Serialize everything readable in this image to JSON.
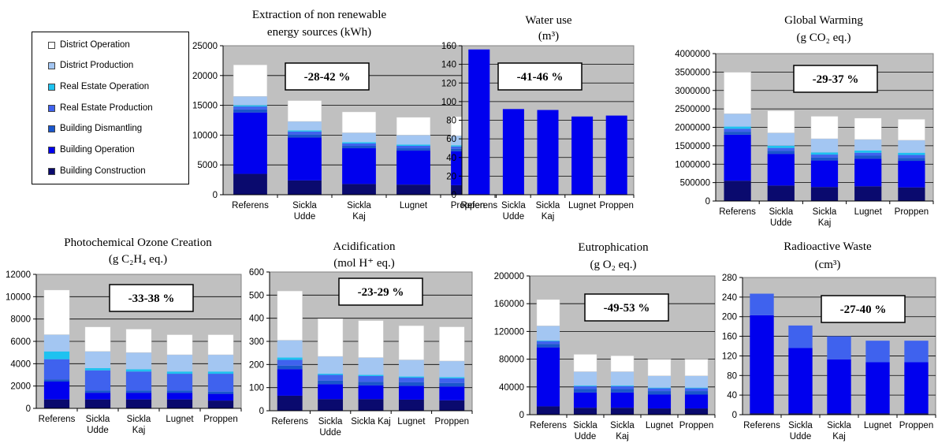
{
  "colors": {
    "building_construction": "#0a0a6e",
    "building_operation": "#0000ee",
    "building_dismantling": "#1a56cc",
    "real_estate_production": "#3f62ee",
    "real_estate_operation": "#1ec2f0",
    "district_production": "#a3c6f2",
    "district_operation": "#ffffff",
    "plot_background": "#c0c0c0"
  },
  "legend": {
    "items": [
      {
        "label": "District Operation",
        "color": "#ffffff"
      },
      {
        "label": "District Production",
        "color": "#a3c6f2"
      },
      {
        "label": "Real Estate Operation",
        "color": "#1ec2f0"
      },
      {
        "label": "Real Estate Production",
        "color": "#3f62ee"
      },
      {
        "label": "Building Dismantling",
        "color": "#1a56cc"
      },
      {
        "label": "Building Operation",
        "color": "#0000ee"
      },
      {
        "label": "Building Construction",
        "color": "#0a0a6e"
      }
    ]
  },
  "chart_data": [
    {
      "id": "energy",
      "type": "bar",
      "stacked": true,
      "title_lines": [
        "Extraction of non renewable",
        "energy sources (kWh)"
      ],
      "categories": [
        [
          "Referens"
        ],
        [
          "Sickla",
          "Udde"
        ],
        [
          "Sickla",
          "Kaj"
        ],
        [
          "Lugnet"
        ],
        [
          "Proppen"
        ]
      ],
      "ylim": [
        0,
        25000
      ],
      "yticks": [
        "0",
        "5000",
        "10000",
        "15000",
        "20000",
        "25000"
      ],
      "annotation": "-28-42 %",
      "series": [
        {
          "name": "Building Construction",
          "values": [
            3500,
            2400,
            1800,
            1700,
            1600
          ]
        },
        {
          "name": "Building Operation",
          "values": [
            10300,
            7200,
            6000,
            5700,
            5700
          ]
        },
        {
          "name": "Building Dismantling",
          "values": [
            500,
            500,
            400,
            400,
            400
          ]
        },
        {
          "name": "Real Estate Production",
          "values": [
            500,
            500,
            400,
            400,
            400
          ]
        },
        {
          "name": "Real Estate Operation",
          "values": [
            200,
            200,
            200,
            200,
            200
          ]
        },
        {
          "name": "District Production",
          "values": [
            1500,
            1500,
            1600,
            1600,
            1600
          ]
        },
        {
          "name": "District Operation",
          "values": [
            5300,
            3500,
            3500,
            3000,
            3200
          ]
        }
      ]
    },
    {
      "id": "water",
      "type": "bar",
      "stacked": true,
      "title_lines": [
        "Water use",
        "(m³)"
      ],
      "categories": [
        [
          "Referens"
        ],
        [
          "Sickla",
          "Udde"
        ],
        [
          "Sickla",
          "Kaj"
        ],
        [
          "Lugnet"
        ],
        [
          "Proppen"
        ]
      ],
      "ylim": [
        0,
        160
      ],
      "yticks": [
        "0",
        "20",
        "40",
        "60",
        "80",
        "100",
        "120",
        "140",
        "160"
      ],
      "annotation": "-41-46 %",
      "series": [
        {
          "name": "Building Operation",
          "values": [
            156,
            92,
            91,
            84,
            85
          ]
        }
      ]
    },
    {
      "id": "gwp",
      "type": "bar",
      "stacked": true,
      "title_lines": [
        "Global Warming",
        "(g CO₂ eq.)"
      ],
      "categories": [
        [
          "Referens"
        ],
        [
          "Sickla",
          "Udde"
        ],
        [
          "Sickla",
          "Kaj"
        ],
        [
          "Lugnet"
        ],
        [
          "Proppen"
        ]
      ],
      "ylim": [
        0,
        4000000
      ],
      "yticks": [
        "0",
        "500000",
        "1000000",
        "1500000",
        "2000000",
        "2500000",
        "3000000",
        "3500000",
        "4000000"
      ],
      "annotation": "-29-37 %",
      "series": [
        {
          "name": "Building Construction",
          "values": [
            550000,
            420000,
            380000,
            400000,
            370000
          ]
        },
        {
          "name": "Building Operation",
          "values": [
            1250000,
            860000,
            720000,
            750000,
            720000
          ]
        },
        {
          "name": "Building Dismantling",
          "values": [
            80000,
            80000,
            80000,
            80000,
            80000
          ]
        },
        {
          "name": "Real Estate Production",
          "values": [
            80000,
            80000,
            80000,
            80000,
            80000
          ]
        },
        {
          "name": "Real Estate Operation",
          "values": [
            60000,
            60000,
            60000,
            60000,
            60000
          ]
        },
        {
          "name": "District Production",
          "values": [
            350000,
            350000,
            370000,
            300000,
            340000
          ]
        },
        {
          "name": "District Operation",
          "values": [
            1130000,
            600000,
            610000,
            580000,
            570000
          ]
        }
      ]
    },
    {
      "id": "pocp",
      "type": "bar",
      "stacked": true,
      "title_lines": [
        "Photochemical Ozone Creation",
        "(g C₂H₄ eq.)"
      ],
      "categories": [
        [
          "Referens"
        ],
        [
          "Sickla",
          "Udde"
        ],
        [
          "Sickla",
          "Kaj"
        ],
        [
          "Lugnet"
        ],
        [
          "Proppen"
        ]
      ],
      "ylim": [
        0,
        12000
      ],
      "yticks": [
        "0",
        "2000",
        "4000",
        "6000",
        "8000",
        "10000",
        "12000"
      ],
      "annotation": "-33-38 %",
      "series": [
        {
          "name": "Building Construction",
          "values": [
            800,
            800,
            800,
            800,
            700
          ]
        },
        {
          "name": "Building Operation",
          "values": [
            1600,
            600,
            600,
            600,
            600
          ]
        },
        {
          "name": "Building Dismantling",
          "values": [
            200,
            200,
            200,
            200,
            200
          ]
        },
        {
          "name": "Real Estate Production",
          "values": [
            1800,
            1800,
            1700,
            1500,
            1600
          ]
        },
        {
          "name": "Real Estate Operation",
          "values": [
            700,
            200,
            200,
            200,
            200
          ]
        },
        {
          "name": "District Production",
          "values": [
            1500,
            1500,
            1500,
            1500,
            1500
          ]
        },
        {
          "name": "District Operation",
          "values": [
            4000,
            2200,
            2100,
            1800,
            1800
          ]
        }
      ]
    },
    {
      "id": "acid",
      "type": "bar",
      "stacked": true,
      "title_lines": [
        "Acidification",
        "(mol H⁺ eq.)"
      ],
      "categories": [
        [
          "Referens"
        ],
        [
          "Sickla",
          "Udde"
        ],
        [
          "Sickla Kaj"
        ],
        [
          "Lugnet"
        ],
        [
          "Proppen"
        ]
      ],
      "ylim": [
        0,
        600
      ],
      "yticks": [
        "0",
        "100",
        "200",
        "300",
        "400",
        "500",
        "600"
      ],
      "annotation": "-23-29 %",
      "series": [
        {
          "name": "Building Construction",
          "values": [
            65,
            50,
            50,
            48,
            45
          ]
        },
        {
          "name": "Building Operation",
          "values": [
            115,
            65,
            60,
            60,
            60
          ]
        },
        {
          "name": "Building Dismantling",
          "values": [
            15,
            15,
            15,
            15,
            15
          ]
        },
        {
          "name": "Real Estate Production",
          "values": [
            25,
            25,
            25,
            20,
            20
          ]
        },
        {
          "name": "Real Estate Operation",
          "values": [
            10,
            5,
            5,
            5,
            5
          ]
        },
        {
          "name": "District Production",
          "values": [
            75,
            75,
            75,
            72,
            70
          ]
        },
        {
          "name": "District Operation",
          "values": [
            213,
            163,
            160,
            148,
            148
          ]
        }
      ]
    },
    {
      "id": "eutro",
      "type": "bar",
      "stacked": true,
      "title_lines": [
        "Eutrophication",
        "(g O₂ eq.)"
      ],
      "categories": [
        [
          "Referens"
        ],
        [
          "Sickla",
          "Udde"
        ],
        [
          "Sickla",
          "Kaj"
        ],
        [
          "Lugnet"
        ],
        [
          "Proppen"
        ]
      ],
      "ylim": [
        0,
        200000
      ],
      "yticks": [
        "0",
        "40000",
        "80000",
        "120000",
        "160000",
        "200000"
      ],
      "annotation": "-49-53 %",
      "series": [
        {
          "name": "Building Construction",
          "values": [
            12000,
            10000,
            10000,
            9000,
            9000
          ]
        },
        {
          "name": "Building Operation",
          "values": [
            85000,
            22000,
            22000,
            20000,
            20000
          ]
        },
        {
          "name": "Building Dismantling",
          "values": [
            5000,
            5000,
            5000,
            5000,
            5000
          ]
        },
        {
          "name": "Real Estate Production",
          "values": [
            4000,
            4000,
            4000,
            4000,
            4000
          ]
        },
        {
          "name": "Real Estate Operation",
          "values": [
            1000,
            1000,
            1000,
            1000,
            1000
          ]
        },
        {
          "name": "District Production",
          "values": [
            21000,
            20000,
            20000,
            17000,
            17000
          ]
        },
        {
          "name": "District Operation",
          "values": [
            38000,
            25000,
            23000,
            24000,
            24000
          ]
        }
      ]
    },
    {
      "id": "radio",
      "type": "bar",
      "stacked": true,
      "title_lines": [
        "Radioactive Waste",
        "(cm³)"
      ],
      "categories": [
        [
          "Referens"
        ],
        [
          "Sickla",
          "Udde"
        ],
        [
          "Sickla",
          "Kaj"
        ],
        [
          "Lugnet"
        ],
        [
          "Proppen"
        ]
      ],
      "ylim": [
        0,
        280
      ],
      "yticks": [
        "0",
        "40",
        "80",
        "120",
        "160",
        "200",
        "240",
        "280"
      ],
      "annotation": "-27-40 %",
      "series": [
        {
          "name": "Building Construction",
          "values": [
            3,
            3,
            3,
            3,
            3
          ]
        },
        {
          "name": "Building Operation",
          "values": [
            200,
            133,
            110,
            104,
            104
          ]
        },
        {
          "name": "Real Estate Production",
          "values": [
            44,
            46,
            47,
            44,
            44
          ]
        }
      ]
    }
  ]
}
